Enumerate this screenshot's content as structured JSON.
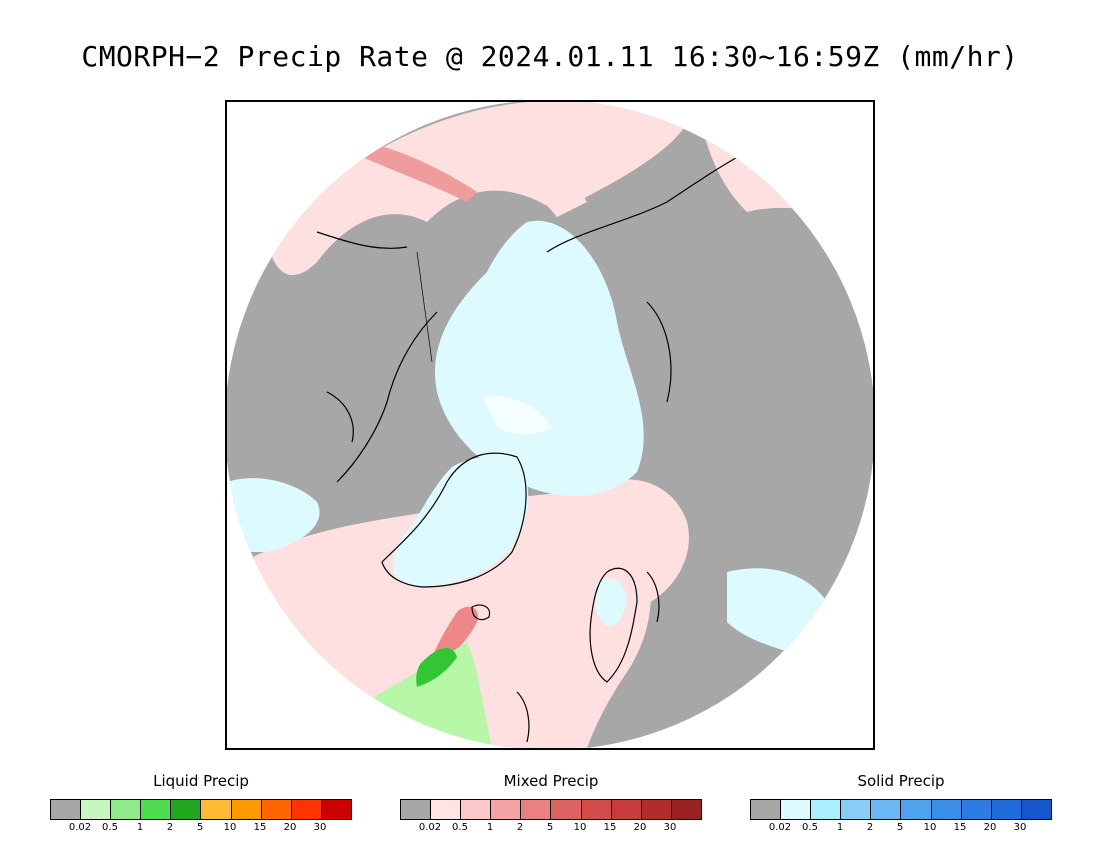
{
  "title": "CMORPH−2 Precip Rate @ 2024.01.11 16:30~16:59Z (mm/hr)",
  "map": {
    "projection": "north-polar-stereographic",
    "colors": {
      "no_precip": "#a7a7a7",
      "mixed_light": "#ffe0e0",
      "solid_light": "#dcfaff",
      "mixed_moderate": "#ee8888",
      "liquid_light": "#b7f7a8",
      "liquid_moderate": "#33c633",
      "coastline": "#000000"
    }
  },
  "legends": [
    {
      "title": "Liquid Precip",
      "colors": [
        "#a7a7a7",
        "#c7f7bf",
        "#8fea88",
        "#4fdd4f",
        "#1fa81f",
        "#ffbb33",
        "#ff9900",
        "#ff6600",
        "#ff3300",
        "#cc0000"
      ],
      "ticks": [
        "0.02",
        "0.5",
        "1",
        "2",
        "5",
        "10",
        "15",
        "20",
        "30"
      ]
    },
    {
      "title": "Mixed Precip",
      "colors": [
        "#a7a7a7",
        "#ffe4e4",
        "#ffc8c8",
        "#f4a2a2",
        "#ea8080",
        "#de6262",
        "#d24c4c",
        "#c43c3c",
        "#b22c2c",
        "#9b2020"
      ],
      "ticks": [
        "0.02",
        "0.5",
        "1",
        "2",
        "5",
        "10",
        "15",
        "20",
        "30"
      ]
    },
    {
      "title": "Solid Precip",
      "colors": [
        "#a7a7a7",
        "#dcfaff",
        "#aaeeff",
        "#88ccf8",
        "#6cb8f4",
        "#4ea2ee",
        "#3a8ee8",
        "#2c7ce2",
        "#206cda",
        "#1656cc"
      ],
      "ticks": [
        "0.02",
        "0.5",
        "1",
        "2",
        "5",
        "10",
        "15",
        "20",
        "30"
      ]
    }
  ]
}
